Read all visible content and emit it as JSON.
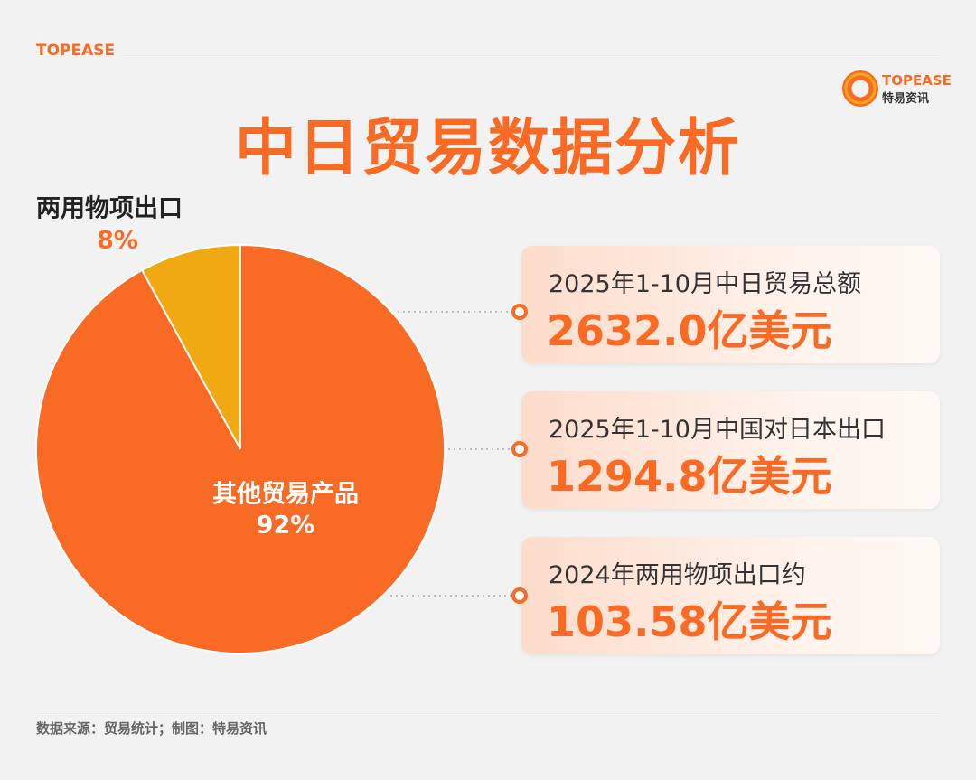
{
  "header": {
    "brand": "TOPEASE"
  },
  "logo": {
    "brand": "TOPEASE",
    "subtitle": "特易资讯"
  },
  "chart_data": {
    "type": "pie",
    "title": "中日贸易数据分析",
    "categories": [
      "两用物项出口",
      "其他贸易产品"
    ],
    "values": [
      8,
      92
    ],
    "value_labels": [
      "8%",
      "92%"
    ],
    "colors": [
      "#f0a912",
      "#f96a24"
    ]
  },
  "cards": [
    {
      "label": "2025年1-10月中日贸易总额",
      "value": "2632.0亿美元"
    },
    {
      "label": "2025年1-10月中国对日本出口",
      "value": "1294.8亿美元"
    },
    {
      "label": "2024年两用物项出口约",
      "value": "103.58亿美元"
    }
  ],
  "source": "数据来源：贸易统计；制图：特易资讯"
}
